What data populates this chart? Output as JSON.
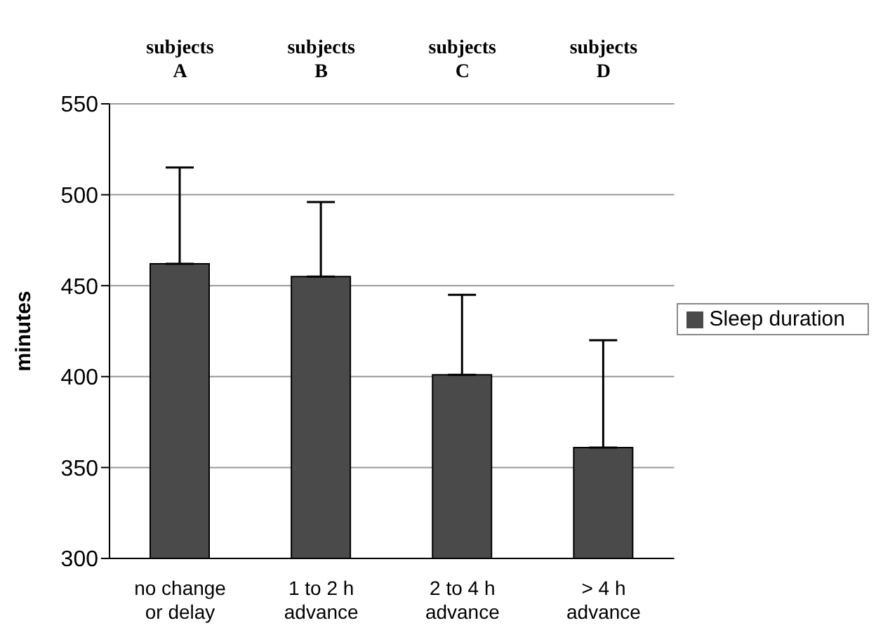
{
  "chart_data": {
    "type": "bar",
    "ylabel": "minutes",
    "categories": [
      "no change\nor delay",
      "1 to 2 h\nadvance",
      "2 to 4 h\nadvance",
      "> 4 h\nadvance"
    ],
    "series": [
      {
        "name": "Sleep duration",
        "color": "#4a4a4a",
        "values": [
          462,
          455,
          401,
          361
        ],
        "errors": [
          [
            462,
            515
          ],
          [
            455,
            496
          ],
          [
            401,
            445
          ],
          [
            361,
            420
          ]
        ]
      }
    ],
    "ylim": [
      300,
      550
    ],
    "yticks": [
      300,
      350,
      400,
      450,
      500,
      550
    ],
    "grid": "y",
    "legend": "right",
    "annotations": [
      "subjects\nA",
      "subjects\nB",
      "subjects\nC",
      "subjects\nD"
    ]
  }
}
